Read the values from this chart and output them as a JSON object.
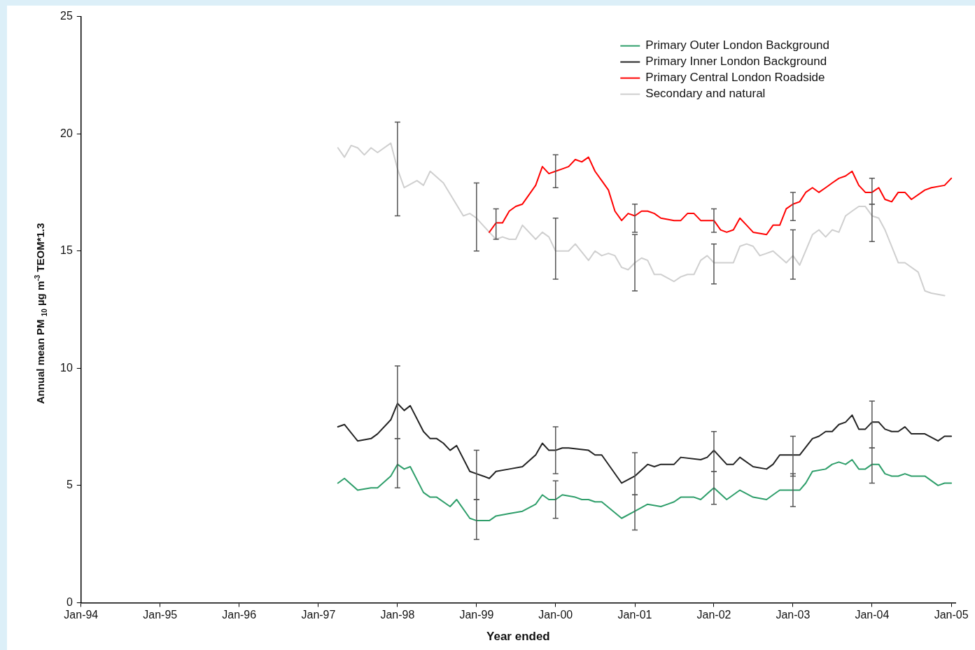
{
  "chart_data": {
    "type": "line",
    "xlabel": "Year ended",
    "ylabel": "Annual mean PM $_{10}$ µg m$^{-3}$ TEOM*1.3",
    "xlim": [
      "1994-01",
      "2005-01-20"
    ],
    "xticks": [
      {
        "value": "1994-01",
        "label": "Jan-94"
      },
      {
        "value": "1995-01",
        "label": "Jan-95"
      },
      {
        "value": "1996-01",
        "label": "Jan-96"
      },
      {
        "value": "1997-01",
        "label": "Jan-97"
      },
      {
        "value": "1998-01",
        "label": "Jan-98"
      },
      {
        "value": "1999-01",
        "label": "Jan-99"
      },
      {
        "value": "2000-01",
        "label": "Jan-00"
      },
      {
        "value": "2001-01",
        "label": "Jan-01"
      },
      {
        "value": "2002-01",
        "label": "Jan-02"
      },
      {
        "value": "2003-01",
        "label": "Jan-03"
      },
      {
        "value": "2004-01",
        "label": "Jan-04"
      },
      {
        "value": "2005-01",
        "label": "Jan-05"
      }
    ],
    "ylim": [
      0,
      25
    ],
    "yticks": [
      0,
      5,
      10,
      15,
      20,
      25
    ],
    "legend": "top right",
    "marker": "none",
    "line_style": "solid",
    "series": [
      {
        "name": "Primary Outer London Background",
        "color": "#2e9e6a",
        "x": [
          "1997-04",
          "1997-05",
          "1997-07",
          "1997-09",
          "1997-10",
          "1997-12",
          "1998-01",
          "1998-02",
          "1998-03",
          "1998-05",
          "1998-06",
          "1998-07",
          "1998-09",
          "1998-10",
          "1998-12",
          "1999-01",
          "1999-03",
          "1999-04",
          "1999-06",
          "1999-08",
          "1999-10",
          "1999-11",
          "1999-12",
          "2000-01",
          "2000-02",
          "2000-04",
          "2000-05",
          "2000-06",
          "2000-07",
          "2000-08",
          "2000-11",
          "2001-01",
          "2001-03",
          "2001-05",
          "2001-06",
          "2001-07",
          "2001-08",
          "2001-10",
          "2001-11",
          "2002-01",
          "2002-03",
          "2002-05",
          "2002-07",
          "2002-09",
          "2002-10",
          "2002-11",
          "2003-01",
          "2003-02",
          "2003-03",
          "2003-04",
          "2003-06",
          "2003-07",
          "2003-08",
          "2003-09",
          "2003-10",
          "2003-11",
          "2003-12",
          "2004-01",
          "2004-02",
          "2004-03",
          "2004-04",
          "2004-05",
          "2004-06",
          "2004-07",
          "2004-09",
          "2004-11",
          "2004-12",
          "2005-01"
        ],
        "values": [
          5.1,
          5.3,
          4.8,
          4.9,
          4.9,
          5.4,
          5.9,
          5.7,
          5.8,
          4.7,
          4.5,
          4.5,
          4.1,
          4.4,
          3.6,
          3.5,
          3.5,
          3.7,
          3.8,
          3.9,
          4.2,
          4.6,
          4.4,
          4.4,
          4.6,
          4.5,
          4.4,
          4.4,
          4.3,
          4.3,
          3.6,
          3.9,
          4.2,
          4.1,
          4.2,
          4.3,
          4.5,
          4.5,
          4.4,
          4.9,
          4.4,
          4.8,
          4.5,
          4.4,
          4.6,
          4.8,
          4.8,
          4.8,
          5.1,
          5.6,
          5.7,
          5.9,
          6.0,
          5.9,
          6.1,
          5.7,
          5.7,
          5.9,
          5.9,
          5.5,
          5.4,
          5.4,
          5.5,
          5.4,
          5.4,
          5.0,
          5.1,
          5.1
        ],
        "errors": [
          null,
          null,
          null,
          null,
          null,
          null,
          [
            4.9,
            7.0
          ],
          null,
          null,
          null,
          null,
          null,
          null,
          null,
          null,
          [
            2.7,
            4.4
          ],
          null,
          null,
          null,
          null,
          null,
          null,
          null,
          [
            3.6,
            5.2
          ],
          null,
          null,
          null,
          null,
          null,
          null,
          null,
          [
            3.1,
            4.6
          ],
          null,
          null,
          null,
          null,
          null,
          null,
          null,
          [
            4.2,
            5.6
          ],
          null,
          null,
          null,
          null,
          null,
          null,
          [
            4.1,
            5.5
          ],
          null,
          null,
          null,
          null,
          null,
          null,
          null,
          null,
          null,
          null,
          [
            5.1,
            6.6
          ],
          null,
          null,
          null,
          null,
          null,
          null,
          null,
          null,
          null,
          null
        ]
      },
      {
        "name": "Primary Inner London Background",
        "color": "#222222",
        "x": [
          "1997-04",
          "1997-05",
          "1997-07",
          "1997-09",
          "1997-10",
          "1997-12",
          "1998-01",
          "1998-02",
          "1998-03",
          "1998-05",
          "1998-06",
          "1998-07",
          "1998-08",
          "1998-09",
          "1998-10",
          "1998-12",
          "1999-01",
          "1999-02",
          "1999-03",
          "1999-04",
          "1999-06",
          "1999-08",
          "1999-10",
          "1999-11",
          "1999-12",
          "2000-01",
          "2000-02",
          "2000-03",
          "2000-06",
          "2000-07",
          "2000-08",
          "2000-11",
          "2001-01",
          "2001-03",
          "2001-04",
          "2001-05",
          "2001-07",
          "2001-08",
          "2001-11",
          "2001-12",
          "2002-01",
          "2002-03",
          "2002-04",
          "2002-05",
          "2002-07",
          "2002-09",
          "2002-10",
          "2002-11",
          "2003-01",
          "2003-02",
          "2003-04",
          "2003-05",
          "2003-06",
          "2003-07",
          "2003-08",
          "2003-09",
          "2003-10",
          "2003-11",
          "2003-12",
          "2004-01",
          "2004-02",
          "2004-03",
          "2004-04",
          "2004-05",
          "2004-06",
          "2004-07",
          "2004-09",
          "2004-11",
          "2004-12",
          "2005-01"
        ],
        "values": [
          7.5,
          7.6,
          6.9,
          7.0,
          7.2,
          7.8,
          8.5,
          8.2,
          8.4,
          7.3,
          7.0,
          7.0,
          6.8,
          6.5,
          6.7,
          5.6,
          5.5,
          5.4,
          5.3,
          5.6,
          5.7,
          5.8,
          6.3,
          6.8,
          6.5,
          6.5,
          6.6,
          6.6,
          6.5,
          6.3,
          6.3,
          5.1,
          5.4,
          5.9,
          5.8,
          5.9,
          5.9,
          6.2,
          6.1,
          6.2,
          6.5,
          5.9,
          5.9,
          6.2,
          5.8,
          5.7,
          5.9,
          6.3,
          6.3,
          6.3,
          7.0,
          7.1,
          7.3,
          7.3,
          7.6,
          7.7,
          8.0,
          7.4,
          7.4,
          7.7,
          7.7,
          7.4,
          7.3,
          7.3,
          7.5,
          7.2,
          7.2,
          6.9,
          7.1,
          7.1
        ],
        "errors": [
          null,
          null,
          null,
          null,
          null,
          null,
          [
            7.0,
            10.1
          ],
          null,
          null,
          null,
          null,
          null,
          null,
          null,
          null,
          null,
          [
            4.4,
            6.5
          ],
          null,
          null,
          null,
          null,
          null,
          null,
          null,
          null,
          [
            5.5,
            7.5
          ],
          null,
          null,
          null,
          null,
          null,
          null,
          [
            4.6,
            6.4
          ],
          null,
          null,
          null,
          null,
          null,
          null,
          null,
          [
            5.6,
            7.3
          ],
          null,
          null,
          null,
          null,
          null,
          null,
          null,
          [
            5.4,
            7.1
          ],
          null,
          null,
          null,
          null,
          null,
          null,
          null,
          null,
          null,
          null,
          [
            6.6,
            8.6
          ],
          null,
          null,
          null,
          null,
          null,
          null,
          null,
          null,
          null,
          null
        ]
      },
      {
        "name": "Primary Central London Roadside",
        "color": "#ff0000",
        "x": [
          "1999-03",
          "1999-04",
          "1999-05",
          "1999-06",
          "1999-07",
          "1999-08",
          "1999-10",
          "1999-11",
          "1999-12",
          "2000-01",
          "2000-02",
          "2000-03",
          "2000-04",
          "2000-05",
          "2000-06",
          "2000-07",
          "2000-08",
          "2000-09",
          "2000-10",
          "2000-11",
          "2000-12",
          "2001-01",
          "2001-02",
          "2001-03",
          "2001-04",
          "2001-05",
          "2001-07",
          "2001-08",
          "2001-09",
          "2001-10",
          "2001-11",
          "2001-12",
          "2002-01",
          "2002-02",
          "2002-03",
          "2002-04",
          "2002-05",
          "2002-06",
          "2002-07",
          "2002-09",
          "2002-10",
          "2002-11",
          "2002-12",
          "2003-01",
          "2003-02",
          "2003-03",
          "2003-04",
          "2003-05",
          "2003-06",
          "2003-07",
          "2003-08",
          "2003-09",
          "2003-10",
          "2003-11",
          "2003-12",
          "2004-01",
          "2004-02",
          "2004-03",
          "2004-04",
          "2004-05",
          "2004-06",
          "2004-07",
          "2004-09",
          "2004-10",
          "2004-12",
          "2005-01"
        ],
        "values": [
          15.8,
          16.2,
          16.2,
          16.7,
          16.9,
          17.0,
          17.8,
          18.6,
          18.3,
          18.4,
          18.5,
          18.6,
          18.9,
          18.8,
          19.0,
          18.4,
          18.0,
          17.6,
          16.7,
          16.3,
          16.6,
          16.5,
          16.7,
          16.7,
          16.6,
          16.4,
          16.3,
          16.3,
          16.6,
          16.6,
          16.3,
          16.3,
          16.3,
          15.9,
          15.8,
          15.9,
          16.4,
          16.1,
          15.8,
          15.7,
          16.1,
          16.1,
          16.8,
          17.0,
          17.1,
          17.5,
          17.7,
          17.5,
          17.7,
          17.9,
          18.1,
          18.2,
          18.4,
          17.8,
          17.5,
          17.5,
          17.7,
          17.2,
          17.1,
          17.5,
          17.5,
          17.2,
          17.6,
          17.7,
          17.8,
          18.1
        ],
        "errors": [
          null,
          [
            15.5,
            16.8
          ],
          null,
          null,
          null,
          null,
          null,
          null,
          null,
          [
            17.7,
            19.1
          ],
          null,
          null,
          null,
          null,
          null,
          null,
          null,
          null,
          null,
          null,
          null,
          [
            15.8,
            17.0
          ],
          null,
          null,
          null,
          null,
          null,
          null,
          null,
          null,
          null,
          null,
          [
            15.8,
            16.8
          ],
          null,
          null,
          null,
          null,
          null,
          null,
          null,
          null,
          null,
          null,
          [
            16.3,
            17.5
          ],
          null,
          null,
          null,
          null,
          null,
          null,
          null,
          null,
          null,
          null,
          null,
          [
            17.0,
            18.1
          ],
          null,
          null,
          null,
          null,
          null,
          null,
          null,
          null,
          null,
          null
        ]
      },
      {
        "name": "Secondary and natural",
        "color": "#cfcfcf",
        "x": [
          "1997-04",
          "1997-05",
          "1997-06",
          "1997-07",
          "1997-08",
          "1997-09",
          "1997-10",
          "1997-12",
          "1998-01",
          "1998-02",
          "1998-04",
          "1998-05",
          "1998-06",
          "1998-08",
          "1998-11",
          "1998-12",
          "1999-01",
          "1999-03",
          "1999-04",
          "1999-05",
          "1999-06",
          "1999-07",
          "1999-08",
          "1999-10",
          "1999-11",
          "1999-12",
          "2000-01",
          "2000-03",
          "2000-04",
          "2000-06",
          "2000-07",
          "2000-08",
          "2000-09",
          "2000-10",
          "2000-11",
          "2000-12",
          "2001-01",
          "2001-02",
          "2001-03",
          "2001-04",
          "2001-05",
          "2001-07",
          "2001-08",
          "2001-09",
          "2001-10",
          "2001-11",
          "2001-12",
          "2002-01",
          "2002-03",
          "2002-04",
          "2002-05",
          "2002-06",
          "2002-07",
          "2002-08",
          "2002-09",
          "2002-10",
          "2002-12",
          "2003-01",
          "2003-02",
          "2003-04",
          "2003-05",
          "2003-06",
          "2003-07",
          "2003-08",
          "2003-09",
          "2003-10",
          "2003-11",
          "2003-12",
          "2004-01",
          "2004-02",
          "2004-03",
          "2004-05",
          "2004-06",
          "2004-08",
          "2004-09",
          "2004-10",
          "2004-12"
        ],
        "values": [
          19.4,
          19.0,
          19.5,
          19.4,
          19.1,
          19.4,
          19.2,
          19.6,
          18.5,
          17.7,
          18.0,
          17.8,
          18.4,
          17.9,
          16.5,
          16.6,
          16.4,
          15.8,
          15.5,
          15.6,
          15.5,
          15.5,
          16.1,
          15.5,
          15.8,
          15.6,
          15.0,
          15.0,
          15.3,
          14.6,
          15.0,
          14.8,
          14.9,
          14.8,
          14.3,
          14.2,
          14.5,
          14.7,
          14.6,
          14.0,
          14.0,
          13.7,
          13.9,
          14.0,
          14.0,
          14.6,
          14.8,
          14.5,
          14.5,
          14.5,
          15.2,
          15.3,
          15.2,
          14.8,
          14.9,
          15.0,
          14.5,
          14.8,
          14.4,
          15.7,
          15.9,
          15.6,
          15.9,
          15.8,
          16.5,
          16.7,
          16.9,
          16.9,
          16.5,
          16.4,
          15.9,
          14.5,
          14.5,
          14.1,
          13.3,
          13.2,
          13.1
        ],
        "errors": [
          null,
          null,
          null,
          null,
          null,
          null,
          null,
          null,
          [
            16.5,
            20.5
          ],
          null,
          null,
          null,
          null,
          null,
          null,
          null,
          [
            15.0,
            17.9
          ],
          null,
          null,
          null,
          null,
          null,
          null,
          null,
          null,
          null,
          [
            13.8,
            16.4
          ],
          null,
          null,
          null,
          null,
          null,
          null,
          null,
          null,
          null,
          [
            13.3,
            15.7
          ],
          null,
          null,
          null,
          null,
          null,
          null,
          null,
          null,
          null,
          null,
          [
            13.6,
            15.3
          ],
          null,
          null,
          null,
          null,
          null,
          null,
          null,
          null,
          null,
          [
            13.8,
            15.9
          ],
          null,
          null,
          null,
          null,
          null,
          null,
          null,
          null,
          null,
          null,
          [
            15.4,
            17.0
          ],
          null,
          null,
          null,
          null,
          null,
          null,
          null,
          null
        ]
      }
    ]
  }
}
